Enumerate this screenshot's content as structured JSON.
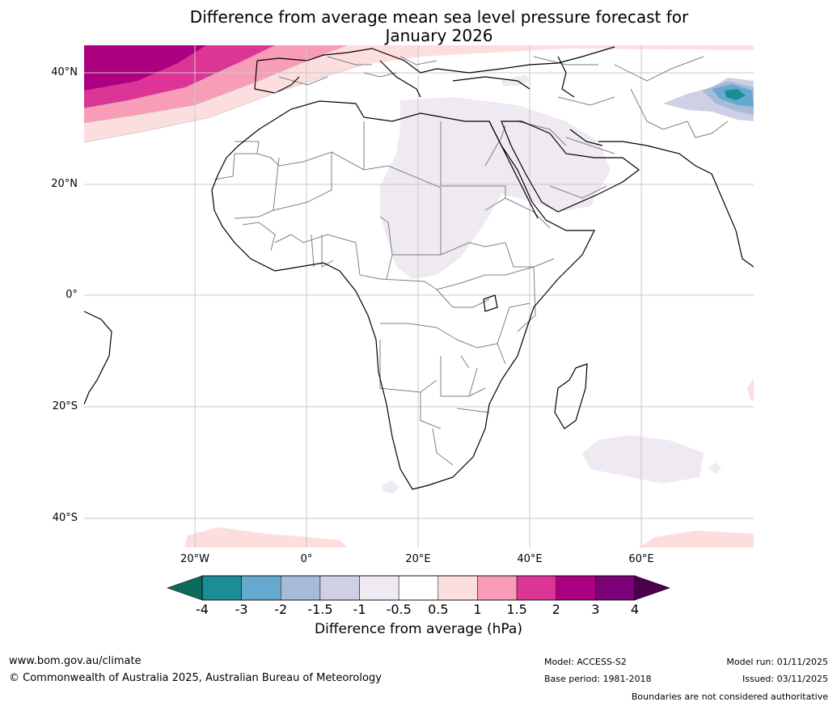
{
  "title": {
    "line1": "Difference from average mean sea level pressure forecast for",
    "line2": "January 2026"
  },
  "axes": {
    "lat_labels": [
      "40°N",
      "20°N",
      "0°",
      "20°S",
      "40°S"
    ],
    "lon_labels": [
      "20°W",
      "0°",
      "20°E",
      "40°E",
      "60°E"
    ]
  },
  "colorbar": {
    "ticks": [
      "-4",
      "-3",
      "-2",
      "-1.5",
      "-1",
      "-0.5",
      "0.5",
      "1",
      "1.5",
      "2",
      "3",
      "4"
    ],
    "bins": [
      {
        "color": "#1b8e95"
      },
      {
        "color": "#66a9cf"
      },
      {
        "color": "#a6bbd8"
      },
      {
        "color": "#cfd0e5"
      },
      {
        "color": "#efe9f2"
      },
      {
        "color": "#ffffff"
      },
      {
        "color": "#fddede"
      },
      {
        "color": "#f89cb8"
      },
      {
        "color": "#dd3596"
      },
      {
        "color": "#ad0080"
      },
      {
        "color": "#7b0176"
      }
    ],
    "under_color": "#0d6b5e",
    "over_color": "#4b004d",
    "label": "Difference from average (hPa)"
  },
  "footer": {
    "website": "www.bom.gov.au/climate",
    "copyright": "© Commonwealth of Australia 2025, Australian Bureau of Meteorology",
    "model": "Model: ACCESS-S2",
    "base_period": "Base period: 1981-2018",
    "model_run": "Model run: 01/11/2025",
    "issued": "Issued: 03/11/2025",
    "disclaimer": "Boundaries are not considered authoritative"
  }
}
